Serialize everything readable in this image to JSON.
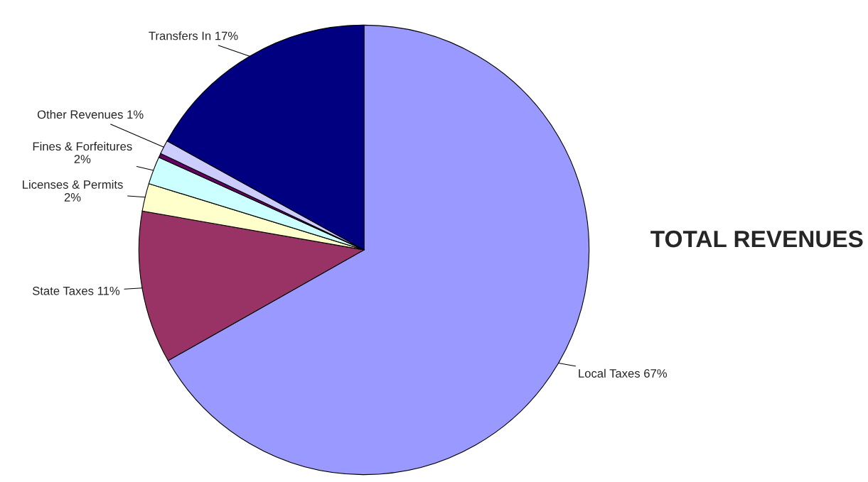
{
  "chart_data": {
    "type": "pie",
    "title": "TOTAL REVENUES",
    "categories": [
      "Local Taxes",
      "State Taxes",
      "Licenses & Permits",
      "Fines & Forfeitures",
      null,
      "Other Revenues",
      "Transfers In"
    ],
    "values": [
      67,
      11,
      2,
      2,
      0.3,
      1,
      17
    ],
    "value_labels": [
      "67%",
      "11%",
      "2%",
      "2%",
      null,
      "1%",
      "17%"
    ],
    "colors": [
      "#9999ff",
      "#993366",
      "#ffffcc",
      "#ccffff",
      "#660066",
      "#ccccff",
      "#000080"
    ]
  }
}
